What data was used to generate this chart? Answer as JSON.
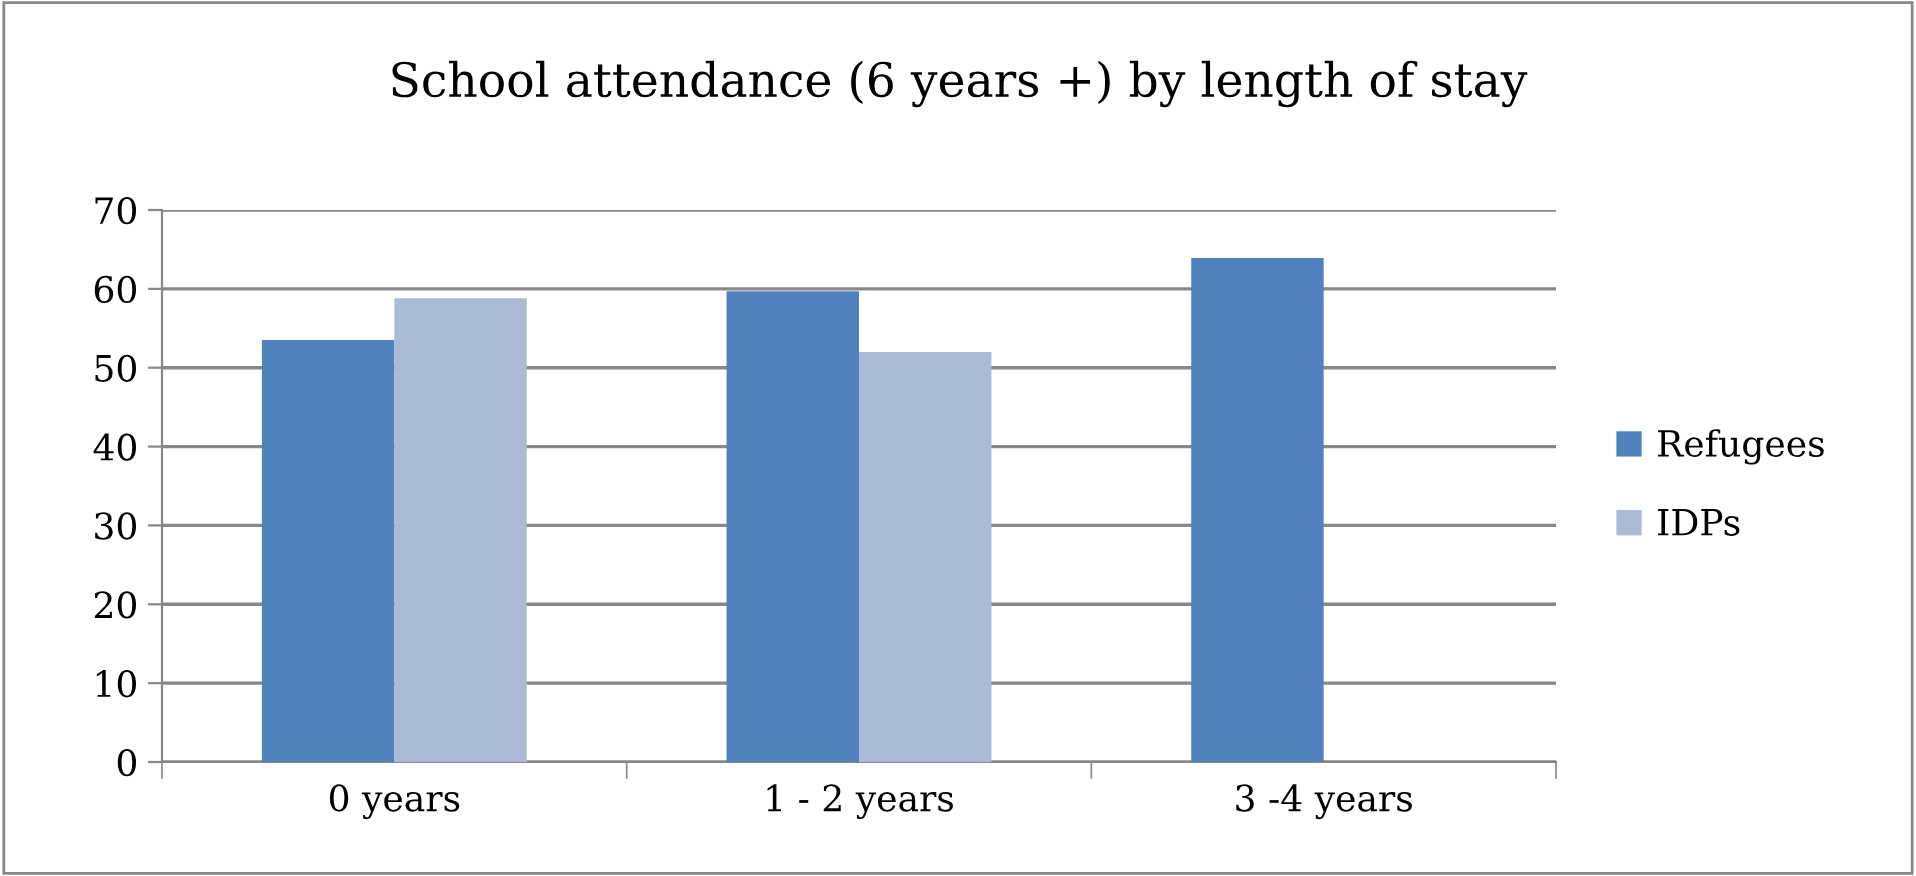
{
  "chart_data": {
    "type": "bar",
    "title": "School attendance (6 years +) by length of stay",
    "categories": [
      "0 years",
      "1 - 2 years",
      "3 -4 years"
    ],
    "series": [
      {
        "name": "Refugees",
        "color": "#4f81bd",
        "values": [
          53.5,
          59.7,
          63.9
        ]
      },
      {
        "name": "IDPs",
        "color": "#aabad7",
        "values": [
          58.8,
          52.0,
          null
        ]
      }
    ],
    "ylim": [
      0,
      70
    ],
    "yticks": [
      0,
      10,
      20,
      30,
      40,
      50,
      60,
      70
    ],
    "grid": "y",
    "legend": "right"
  }
}
